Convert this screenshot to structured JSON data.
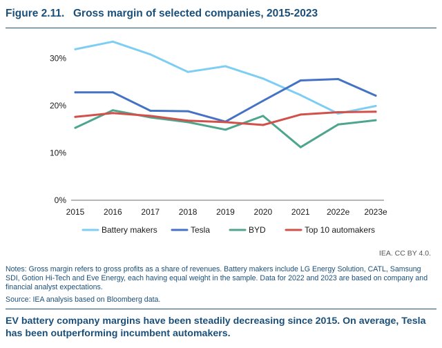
{
  "figure": {
    "number": "Figure 2.11.",
    "title": "Gross margin of selected companies, 2015-2023"
  },
  "chart_data": {
    "type": "line",
    "title": "Gross margin of selected companies, 2015-2023",
    "xlabel": "",
    "ylabel": "",
    "ylim": [
      0,
      35
    ],
    "yticks": [
      0,
      10,
      20,
      30
    ],
    "yticklabels": [
      "0%",
      "10%",
      "20%",
      "30%"
    ],
    "grid": false,
    "legend_position": "bottom",
    "categories": [
      "2015",
      "2016",
      "2017",
      "2018",
      "2019",
      "2020",
      "2021",
      "2022e",
      "2023e"
    ],
    "series": [
      {
        "name": "Battery makers",
        "color": "#7ecdf3",
        "values": [
          31.9,
          33.5,
          30.8,
          27.1,
          28.3,
          25.7,
          22.2,
          18.3,
          19.9
        ]
      },
      {
        "name": "Tesla",
        "color": "#4472c4",
        "values": [
          22.8,
          22.8,
          18.9,
          18.8,
          16.6,
          21.0,
          25.3,
          25.6,
          22.1
        ]
      },
      {
        "name": "BYD",
        "color": "#4ea58e",
        "values": [
          15.3,
          19.0,
          17.5,
          16.5,
          14.9,
          17.8,
          11.2,
          16.0,
          16.9
        ]
      },
      {
        "name": "Top 10 automakers",
        "color": "#d2504a",
        "values": [
          17.6,
          18.4,
          17.8,
          16.8,
          16.5,
          15.9,
          18.1,
          18.6,
          18.7
        ]
      }
    ]
  },
  "credit": "IEA. CC BY 4.0.",
  "notes": "Notes: Gross margin refers to gross profits as a share of revenues. Battery makers include LG Energy Solution, CATL, Samsung SDI, Gotion Hi-Tech and Eve Energy, each having equal weight in the sample. Data for 2022 and 2023 are based on company and financial analyst expectations.",
  "source": "Source: IEA analysis based on Bloomberg data.",
  "caption": "EV battery company margins have been steadily decreasing since 2015. On average, Tesla has been outperforming incumbent automakers."
}
